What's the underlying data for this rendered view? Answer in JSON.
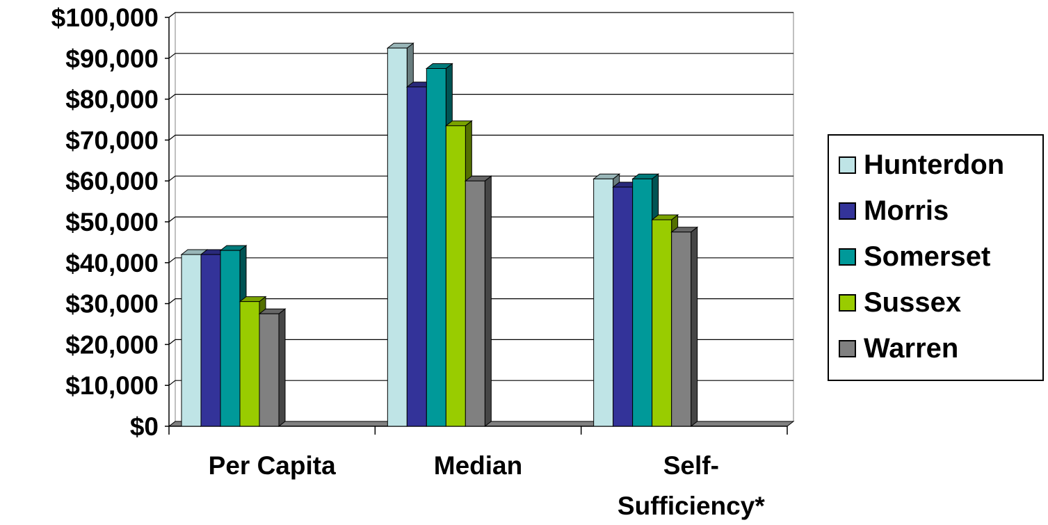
{
  "chart_data": {
    "type": "bar",
    "categories": [
      "Per Capita",
      "Median",
      "Self-\nSufficiency*"
    ],
    "series": [
      {
        "name": "Hunterdon",
        "color": "#bfe4e6",
        "values": [
          42000,
          92500,
          60500
        ]
      },
      {
        "name": "Morris",
        "color": "#333399",
        "values": [
          42000,
          83000,
          58500
        ]
      },
      {
        "name": "Somerset",
        "color": "#009999",
        "values": [
          43000,
          87500,
          60500
        ]
      },
      {
        "name": "Sussex",
        "color": "#99cc00",
        "values": [
          30500,
          73500,
          50500
        ]
      },
      {
        "name": "Warren",
        "color": "#808080",
        "values": [
          27500,
          60000,
          47500
        ]
      }
    ],
    "yticks": [
      "$0",
      "$10,000",
      "$20,000",
      "$30,000",
      "$40,000",
      "$50,000",
      "$60,000",
      "$70,000",
      "$80,000",
      "$90,000",
      "$100,000"
    ],
    "ylim": [
      0,
      100000
    ],
    "grid": true,
    "legend": "right",
    "title": "",
    "xlabel": "",
    "ylabel": ""
  }
}
